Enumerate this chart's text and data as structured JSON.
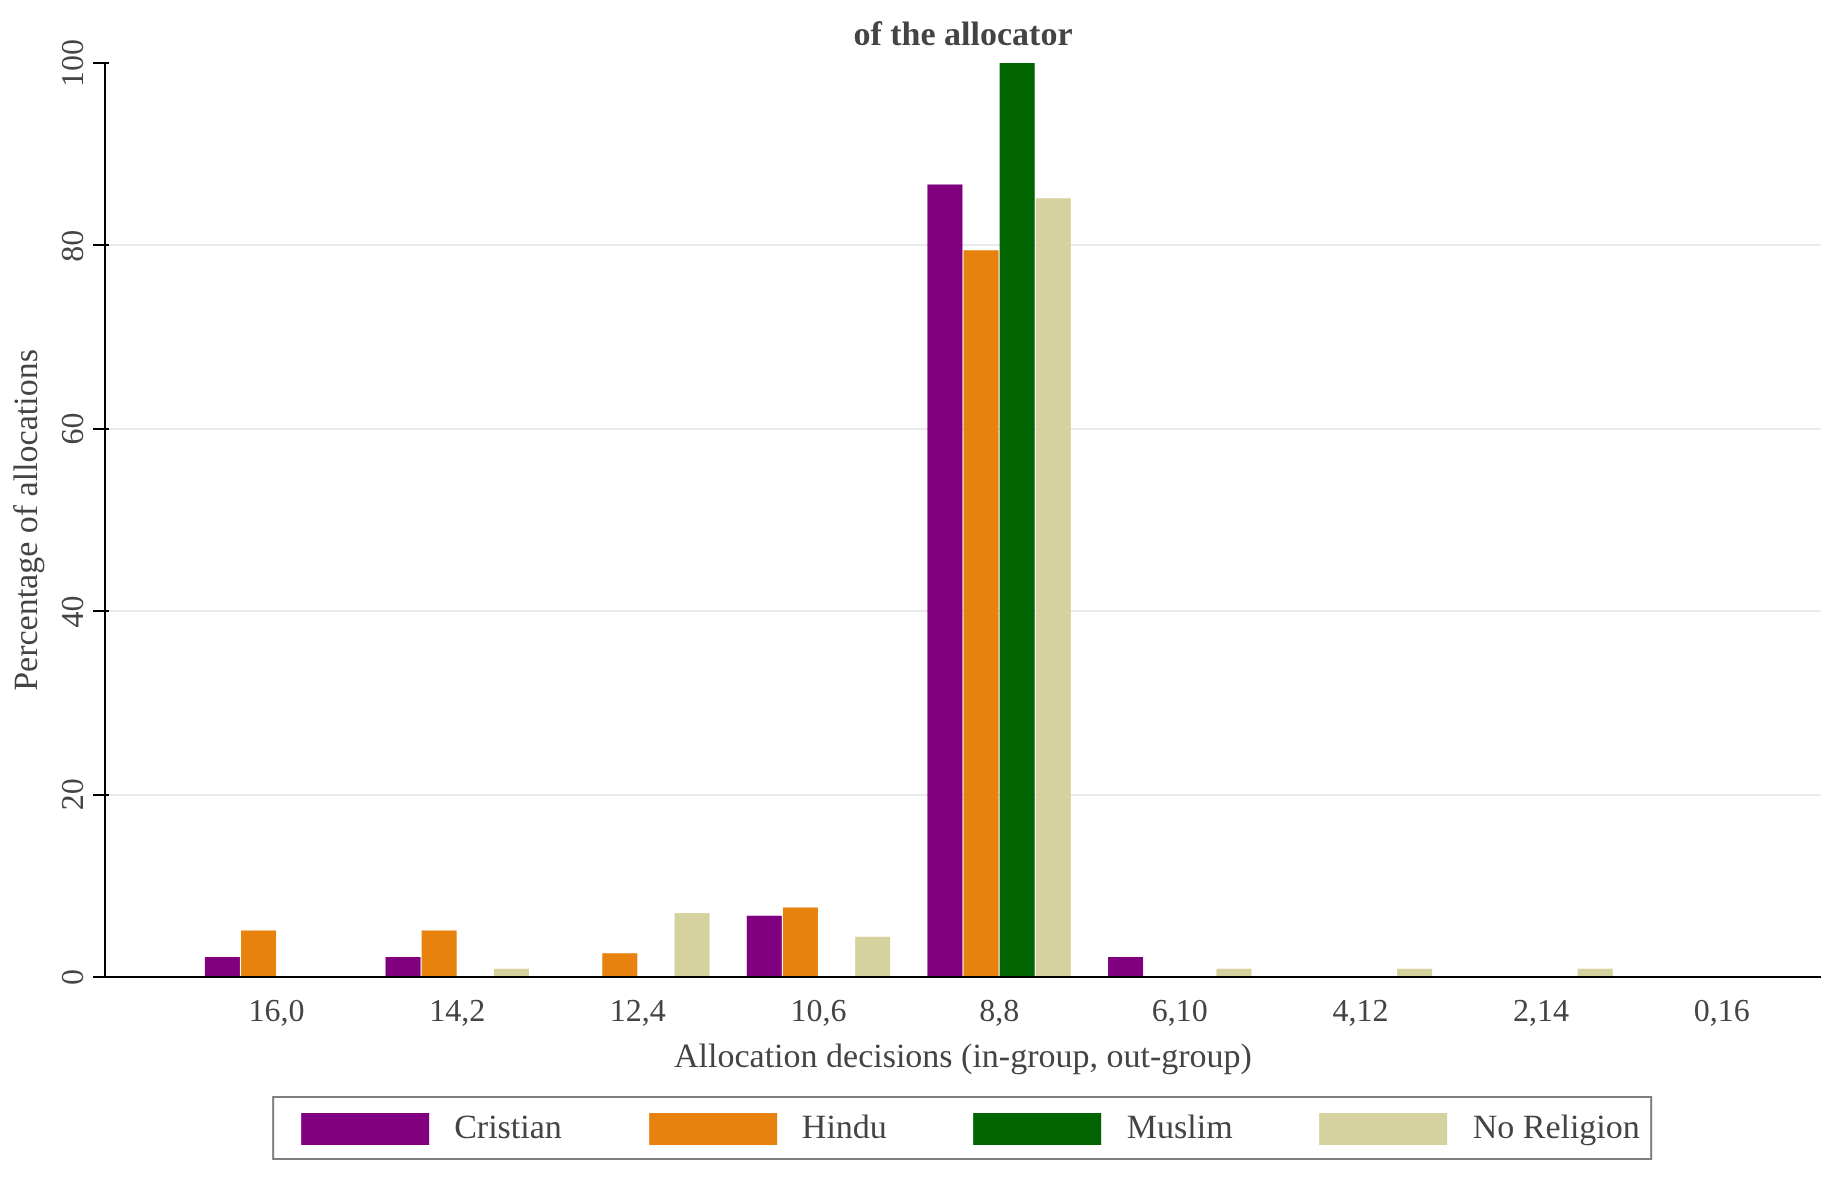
{
  "chart_data": {
    "type": "bar",
    "title": "of the allocator",
    "xlabel": "Allocation decisions (in-group, out-group)",
    "ylabel": "Percentage of allocations",
    "categories": [
      "16,0",
      "14,2",
      "12,4",
      "10,6",
      "8,8",
      "6,10",
      "4,12",
      "2,14",
      "0,16"
    ],
    "series": [
      {
        "name": "Cristian",
        "color": "#800080",
        "values": [
          2.2,
          2.2,
          0,
          6.7,
          86.7,
          2.2,
          0,
          0,
          0
        ]
      },
      {
        "name": "Hindu",
        "color": "#e8820e",
        "values": [
          5.1,
          5.1,
          2.6,
          7.6,
          79.5,
          0,
          0,
          0,
          0
        ]
      },
      {
        "name": "Muslim",
        "color": "#006400",
        "values": [
          0,
          0,
          0,
          0,
          100,
          0,
          0,
          0,
          0
        ]
      },
      {
        "name": "No Religion",
        "color": "#d6d2a0",
        "values": [
          0,
          0.9,
          7,
          4.4,
          85.2,
          0.9,
          0.9,
          0.9,
          0
        ]
      }
    ],
    "ylim": [
      0,
      100
    ],
    "yticks": [
      0,
      20,
      40,
      60,
      80,
      100
    ],
    "grid": "y",
    "legend": "bottom"
  }
}
